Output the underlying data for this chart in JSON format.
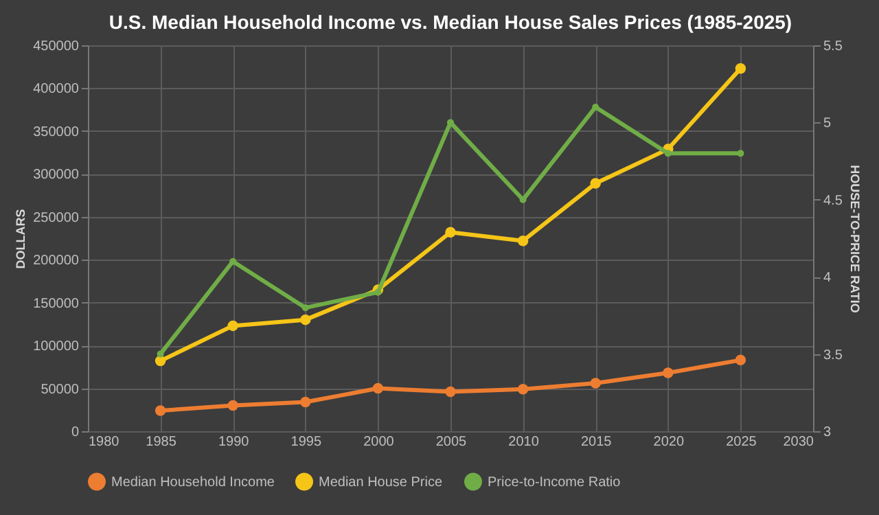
{
  "chart_data": {
    "type": "line",
    "title": "U.S. Median Household Income vs. Median House Sales Prices (1985-2025)",
    "ylabel": "DOLLARS",
    "y2label": "HOUSE-TO-PRICE RATIO",
    "x": [
      1985,
      1990,
      1995,
      2000,
      2005,
      2010,
      2015,
      2020,
      2025
    ],
    "series": [
      {
        "name": "Median Household Income",
        "color": "#ed7d31",
        "values": [
          24000,
          30000,
          34000,
          50000,
          46000,
          49000,
          56000,
          68000,
          83000
        ]
      },
      {
        "name": "Median House Price",
        "color": "#f5c518",
        "values": [
          82000,
          123000,
          130000,
          165000,
          232000,
          222000,
          289000,
          329000,
          423000
        ]
      },
      {
        "name": "Price-to-Income Ratio",
        "color": "#70ad47",
        "axis": "y2",
        "values": [
          3.5,
          4.1,
          3.8,
          3.9,
          5.0,
          4.5,
          5.1,
          4.8,
          4.8
        ]
      }
    ],
    "xlim": [
      1980,
      2030
    ],
    "xticks": [
      1980,
      1985,
      1990,
      1995,
      2000,
      2005,
      2010,
      2015,
      2020,
      2025,
      2030
    ],
    "ylim": [
      0,
      450000
    ],
    "yticks": [
      0,
      50000,
      100000,
      150000,
      200000,
      250000,
      300000,
      350000,
      400000,
      450000
    ],
    "y2lim": [
      3,
      5.5
    ],
    "y2ticks": [
      3,
      3.5,
      4,
      4.5,
      5,
      5.5
    ],
    "grid": true,
    "legend": "bottom",
    "marker": "circle",
    "line_style": "solid"
  }
}
